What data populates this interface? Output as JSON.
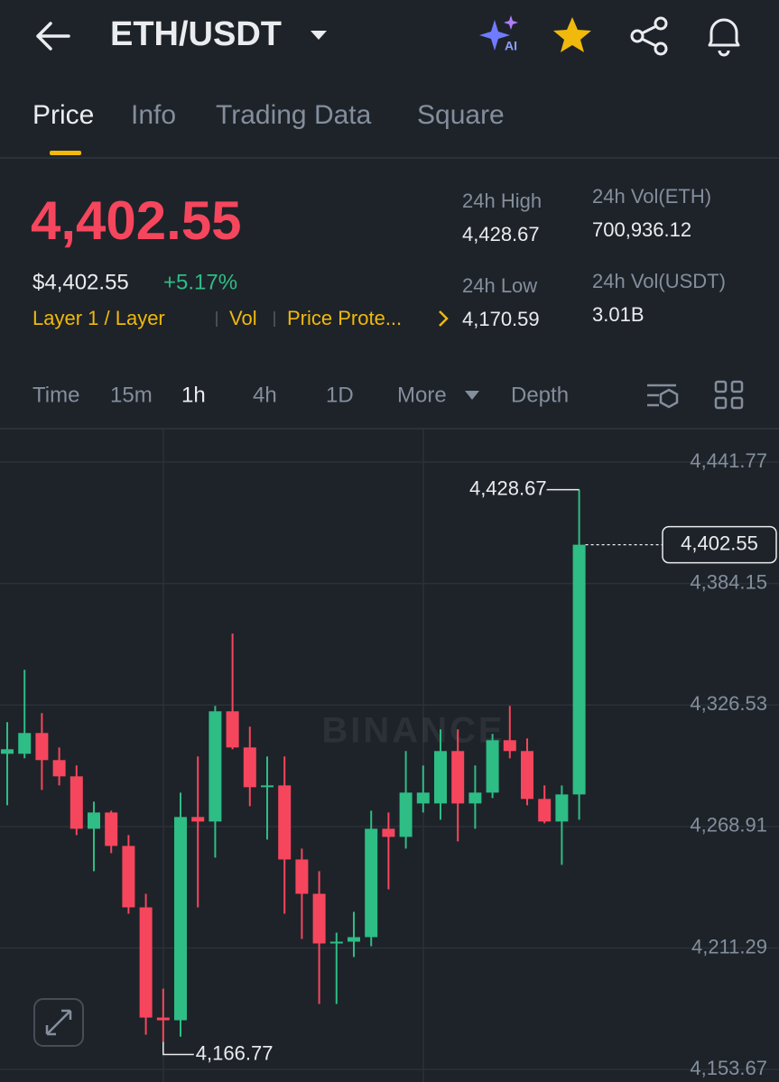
{
  "header": {
    "pair": "ETH/USDT",
    "ai_label": "AI"
  },
  "tabs": [
    "Price",
    "Info",
    "Trading Data",
    "Square"
  ],
  "ticker": {
    "last_price": "4,402.55",
    "usd_price": "$4,402.55",
    "change": "+5.17%",
    "tags": [
      "Layer 1 / Layer",
      "Vol",
      "Price Prote..."
    ],
    "stats": [
      {
        "label": "24h High",
        "value": "4,428.67"
      },
      {
        "label": "24h Vol(ETH)",
        "value": "700,936.12"
      },
      {
        "label": "24h Low",
        "value": "4,170.59"
      },
      {
        "label": "24h Vol(USDT)",
        "value": "3.01B"
      }
    ]
  },
  "intervals": [
    "Time",
    "15m",
    "1h",
    "4h",
    "1D",
    "More",
    "Depth"
  ],
  "chart_data": {
    "type": "candlestick",
    "open": [
      4303.38,
      4303.38,
      4313.23,
      4300.38,
      4292.67,
      4267.82,
      4275.53,
      4259.68,
      4230.54,
      4178.27,
      4176.99,
      4273.39,
      4271.25,
      4323.52,
      4306.38,
      4287.53,
      4288.38,
      4253.25,
      4236.97,
      4213.41,
      4214.26,
      4216.41,
      4267.82,
      4263.96,
      4279.82,
      4279.82,
      4304.67,
      4279.82,
      4284.96,
      4309.81,
      4304.67,
      4281.96,
      4271.25,
      4284.1
    ],
    "high": [
      4318.38,
      4343.23,
      4322.66,
      4306.38,
      4297.81,
      4280.67,
      4276.39,
      4264.82,
      4236.97,
      4191.98,
      4284.96,
      4302.1,
      4326.09,
      4360.36,
      4316.23,
      4302.1,
      4302.1,
      4258.39,
      4247.68,
      4218.55,
      4228.4,
      4276.39,
      4275.53,
      4304.67,
      4297.81,
      4314.95,
      4314.95,
      4297.81,
      4312.81,
      4326.09,
      4310.66,
      4288.38,
      4288.38,
      4428.67
    ],
    "low": [
      4278.96,
      4301.24,
      4286.24,
      4288.38,
      4264.82,
      4247.68,
      4256.25,
      4227.54,
      4170.12,
      4166.77,
      4169.2,
      4230.54,
      4254.11,
      4305.52,
      4278.53,
      4262.68,
      4227.54,
      4215.55,
      4184.7,
      4184.7,
      4206.98,
      4212.12,
      4239.11,
      4258.39,
      4275.53,
      4272.1,
      4261.82,
      4267.82,
      4282.39,
      4301.24,
      4278.96,
      4270.39,
      4250.68,
      4272.1
    ],
    "close": [
      4305.52,
      4313.23,
      4300.38,
      4292.67,
      4267.82,
      4275.53,
      4259.68,
      4230.54,
      4178.27,
      4176.99,
      4273.39,
      4271.25,
      4323.52,
      4306.38,
      4287.53,
      4288.38,
      4253.25,
      4236.97,
      4213.41,
      4214.26,
      4216.41,
      4267.82,
      4263.96,
      4284.96,
      4284.96,
      4304.67,
      4279.82,
      4284.96,
      4309.81,
      4304.67,
      4281.96,
      4271.25,
      4284.1,
      4402.55
    ],
    "up_color": "#2ebd85",
    "down_color": "#f6465d",
    "ylim": [
      4147.7,
      4457.6
    ],
    "yticks": [
      {
        "value": 4441.77,
        "label": "4,441.77"
      },
      {
        "value": 4384.15,
        "label": "4,384.15"
      },
      {
        "value": 4326.53,
        "label": "4,326.53"
      },
      {
        "value": 4268.91,
        "label": "4,268.91"
      },
      {
        "value": 4211.29,
        "label": "4,211.29"
      },
      {
        "value": 4153.67,
        "label": "4,153.67"
      }
    ],
    "annotations": [
      {
        "value": 4428.67,
        "label": "4,428.67"
      },
      {
        "value": 4166.77,
        "label": "4,166.77"
      }
    ],
    "last_price": {
      "value": 4402.55,
      "label": "4,402.55"
    },
    "watermark": "BINANCE",
    "grid": true
  }
}
